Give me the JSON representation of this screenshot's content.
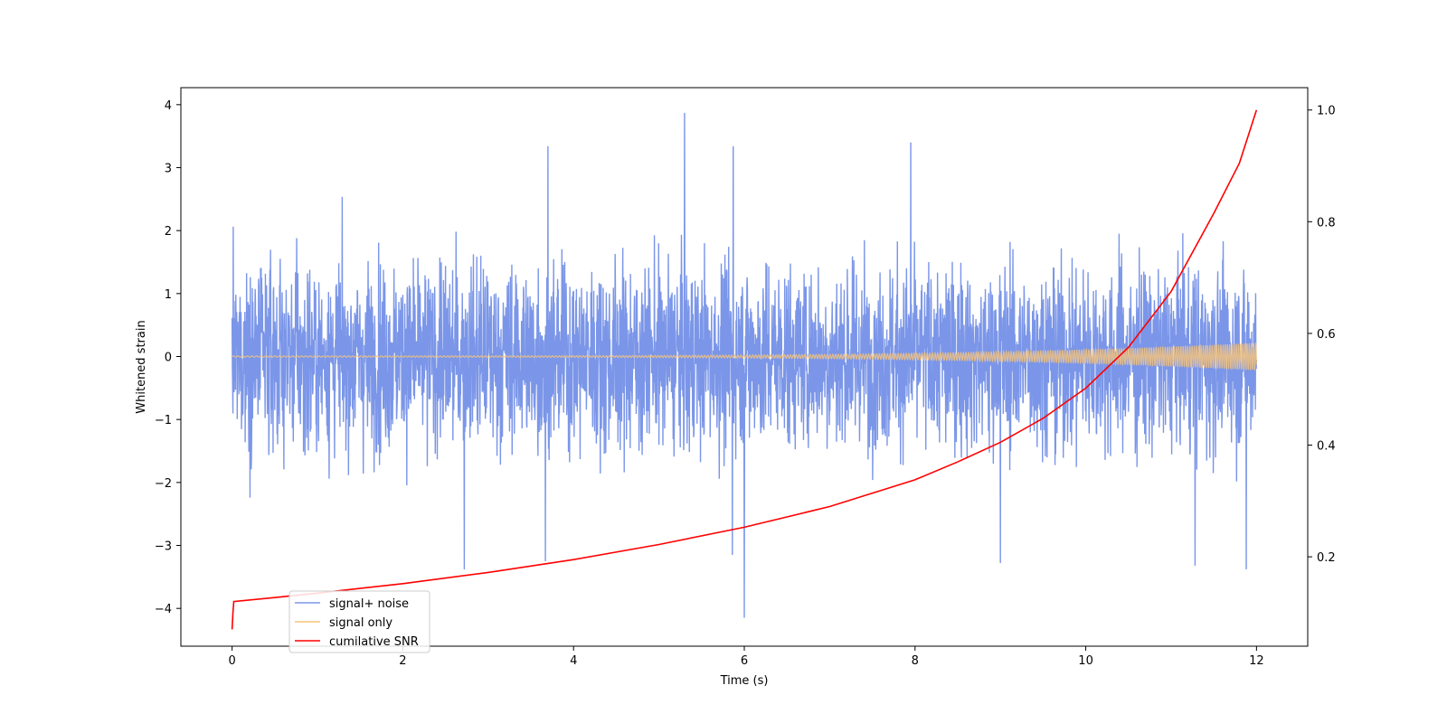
{
  "chart_data": {
    "type": "line",
    "title": "",
    "xlabel": "Time (s)",
    "ylabel": "Whitened strain",
    "ylabel_right": "",
    "xlim": [
      -0.6,
      12.6
    ],
    "ylim": [
      -4.6,
      4.27
    ],
    "ylim_right": [
      0.04,
      1.04
    ],
    "xticks": [
      0,
      2,
      4,
      6,
      8,
      10,
      12
    ],
    "yticks": [
      -4,
      -3,
      -2,
      -1,
      0,
      1,
      2,
      3,
      4
    ],
    "yticks_right": [
      0.2,
      0.4,
      0.6,
      0.8,
      1.0
    ],
    "tick_labels_x": [
      "0",
      "2",
      "4",
      "6",
      "8",
      "10",
      "12"
    ],
    "tick_labels_y": [
      "−4",
      "−3",
      "−2",
      "−1",
      "0",
      "1",
      "2",
      "3",
      "4"
    ],
    "tick_labels_right": [
      "0.2",
      "0.4",
      "0.6",
      "0.8",
      "1.0"
    ],
    "grid": false,
    "legend_position": "lower-left",
    "series": [
      {
        "name": "signal+ noise",
        "axis": "left",
        "color": "#7b96e8",
        "x_range": [
          0,
          12
        ],
        "envelope_min": -4.15,
        "envelope_max": 3.87,
        "typical_range": [
          -1.4,
          1.4
        ],
        "notable_peaks": [
          {
            "x": 5.3,
            "y": 3.87
          },
          {
            "x": 7.95,
            "y": 3.4
          },
          {
            "x": 5.87,
            "y": 3.34
          },
          {
            "x": 3.7,
            "y": 3.34
          },
          {
            "x": 6.0,
            "y": -4.15
          },
          {
            "x": 2.72,
            "y": -3.38
          },
          {
            "x": 3.67,
            "y": -3.25
          },
          {
            "x": 5.86,
            "y": -3.15
          },
          {
            "x": 9.0,
            "y": -3.28
          },
          {
            "x": 11.28,
            "y": -3.32
          },
          {
            "x": 11.88,
            "y": -3.38
          }
        ]
      },
      {
        "name": "signal only",
        "axis": "left",
        "color": "#f5c37c",
        "x_range": [
          0,
          12
        ],
        "amplitude_start": 0.01,
        "amplitude_end": 0.22
      },
      {
        "name": "cumilative SNR",
        "axis": "right",
        "color": "#ff0000",
        "x": [
          0,
          0.01,
          0.02,
          0.5,
          1,
          2,
          3,
          4,
          5,
          6,
          7,
          8,
          8.5,
          9,
          9.5,
          10,
          10.5,
          11,
          11.5,
          11.8,
          12
        ],
        "values": [
          0.07,
          0.1,
          0.12,
          0.127,
          0.135,
          0.152,
          0.172,
          0.195,
          0.222,
          0.253,
          0.29,
          0.338,
          0.37,
          0.405,
          0.448,
          0.502,
          0.575,
          0.675,
          0.815,
          0.905,
          1.0
        ]
      }
    ]
  }
}
